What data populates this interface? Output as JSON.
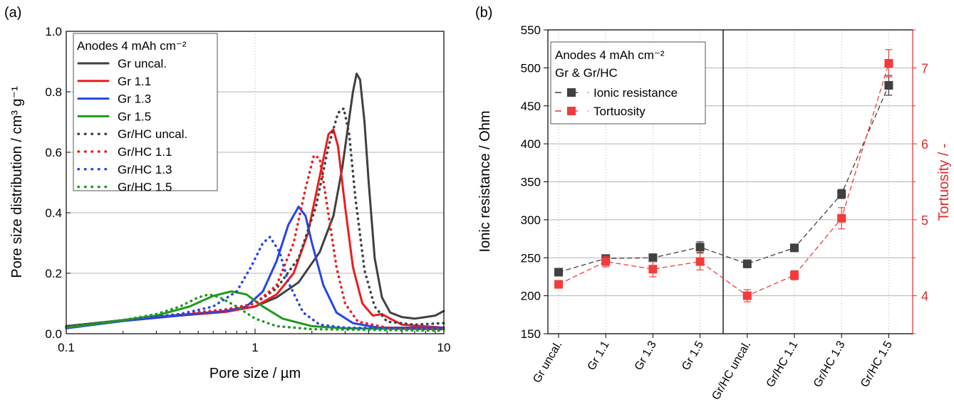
{
  "chart_data": [
    {
      "panel_label": "(a)",
      "type": "line",
      "xscale": "log",
      "xlim": [
        0.1,
        10
      ],
      "ylim": [
        0.0,
        1.0
      ],
      "xticks": [
        0.1,
        1,
        10
      ],
      "xtick_labels": [
        "0.1",
        "1",
        "10"
      ],
      "yticks": [
        0.0,
        0.2,
        0.4,
        0.6,
        0.8,
        1.0
      ],
      "ytick_labels": [
        "0.0",
        "0.2",
        "0.4",
        "0.6",
        "0.8",
        "1.0"
      ],
      "xlabel": "Pore size / µm",
      "ylabel": "Pore size distribution / cm³ g⁻¹",
      "grid": "horizontal",
      "legend_title": "Anodes 4 mAh cm⁻²",
      "legend_position": "top-left",
      "series": [
        {
          "name": "Gr uncal.",
          "color": "#404040",
          "style": "solid",
          "points": [
            [
              0.1,
              0.025
            ],
            [
              0.2,
              0.045
            ],
            [
              0.4,
              0.062
            ],
            [
              0.7,
              0.075
            ],
            [
              1.0,
              0.09
            ],
            [
              1.3,
              0.12
            ],
            [
              1.7,
              0.17
            ],
            [
              2.2,
              0.27
            ],
            [
              2.6,
              0.39
            ],
            [
              2.9,
              0.55
            ],
            [
              3.1,
              0.68
            ],
            [
              3.3,
              0.8
            ],
            [
              3.45,
              0.86
            ],
            [
              3.6,
              0.84
            ],
            [
              3.8,
              0.7
            ],
            [
              4.0,
              0.5
            ],
            [
              4.3,
              0.25
            ],
            [
              4.7,
              0.12
            ],
            [
              5.2,
              0.07
            ],
            [
              6.0,
              0.055
            ],
            [
              7.0,
              0.05
            ],
            [
              8.0,
              0.055
            ],
            [
              9.0,
              0.06
            ],
            [
              10.0,
              0.075
            ]
          ]
        },
        {
          "name": "Gr 1.1",
          "color": "#ee1c1c",
          "style": "solid",
          "points": [
            [
              0.1,
              0.02
            ],
            [
              0.2,
              0.043
            ],
            [
              0.4,
              0.06
            ],
            [
              0.7,
              0.072
            ],
            [
              1.0,
              0.09
            ],
            [
              1.3,
              0.13
            ],
            [
              1.6,
              0.2
            ],
            [
              1.9,
              0.33
            ],
            [
              2.2,
              0.52
            ],
            [
              2.45,
              0.66
            ],
            [
              2.6,
              0.675
            ],
            [
              2.75,
              0.62
            ],
            [
              3.0,
              0.42
            ],
            [
              3.3,
              0.22
            ],
            [
              3.7,
              0.1
            ],
            [
              4.2,
              0.06
            ],
            [
              4.7,
              0.065
            ],
            [
              5.2,
              0.05
            ],
            [
              6.0,
              0.03
            ],
            [
              10.0,
              0.02
            ]
          ]
        },
        {
          "name": "Gr 1.3",
          "color": "#2744e8",
          "style": "solid",
          "points": [
            [
              0.1,
              0.018
            ],
            [
              0.2,
              0.042
            ],
            [
              0.4,
              0.06
            ],
            [
              0.7,
              0.075
            ],
            [
              0.9,
              0.09
            ],
            [
              1.1,
              0.14
            ],
            [
              1.3,
              0.24
            ],
            [
              1.5,
              0.36
            ],
            [
              1.7,
              0.42
            ],
            [
              1.85,
              0.39
            ],
            [
              2.0,
              0.3
            ],
            [
              2.3,
              0.16
            ],
            [
              2.7,
              0.07
            ],
            [
              3.3,
              0.035
            ],
            [
              4.5,
              0.02
            ],
            [
              6.0,
              0.02
            ],
            [
              10.0,
              0.02
            ]
          ]
        },
        {
          "name": "Gr 1.5",
          "color": "#1f9a1f",
          "style": "solid",
          "points": [
            [
              0.1,
              0.02
            ],
            [
              0.2,
              0.045
            ],
            [
              0.3,
              0.06
            ],
            [
              0.45,
              0.09
            ],
            [
              0.6,
              0.125
            ],
            [
              0.75,
              0.14
            ],
            [
              0.9,
              0.13
            ],
            [
              1.1,
              0.09
            ],
            [
              1.4,
              0.05
            ],
            [
              2.0,
              0.025
            ],
            [
              3.0,
              0.018
            ],
            [
              10.0,
              0.015
            ]
          ]
        },
        {
          "name": "Gr/HC uncal.",
          "color": "#404040",
          "style": "dotted",
          "points": [
            [
              0.1,
              0.022
            ],
            [
              0.2,
              0.045
            ],
            [
              0.4,
              0.065
            ],
            [
              0.7,
              0.08
            ],
            [
              1.0,
              0.1
            ],
            [
              1.3,
              0.15
            ],
            [
              1.7,
              0.25
            ],
            [
              2.1,
              0.42
            ],
            [
              2.45,
              0.62
            ],
            [
              2.75,
              0.73
            ],
            [
              2.95,
              0.745
            ],
            [
              3.15,
              0.66
            ],
            [
              3.4,
              0.45
            ],
            [
              3.8,
              0.21
            ],
            [
              4.3,
              0.09
            ],
            [
              5.0,
              0.04
            ],
            [
              7.0,
              0.03
            ],
            [
              10.0,
              0.035
            ]
          ]
        },
        {
          "name": "Gr/HC 1.1",
          "color": "#ee1c1c",
          "style": "dotted",
          "points": [
            [
              0.1,
              0.022
            ],
            [
              0.2,
              0.045
            ],
            [
              0.4,
              0.065
            ],
            [
              0.7,
              0.08
            ],
            [
              1.0,
              0.1
            ],
            [
              1.3,
              0.16
            ],
            [
              1.6,
              0.3
            ],
            [
              1.85,
              0.48
            ],
            [
              2.05,
              0.59
            ],
            [
              2.2,
              0.58
            ],
            [
              2.4,
              0.43
            ],
            [
              2.7,
              0.22
            ],
            [
              3.0,
              0.1
            ],
            [
              3.5,
              0.04
            ],
            [
              5.0,
              0.02
            ],
            [
              10.0,
              0.015
            ]
          ]
        },
        {
          "name": "Gr/HC 1.3",
          "color": "#2744e8",
          "style": "dotted",
          "points": [
            [
              0.1,
              0.022
            ],
            [
              0.2,
              0.045
            ],
            [
              0.4,
              0.065
            ],
            [
              0.6,
              0.09
            ],
            [
              0.8,
              0.14
            ],
            [
              0.95,
              0.22
            ],
            [
              1.1,
              0.3
            ],
            [
              1.2,
              0.32
            ],
            [
              1.35,
              0.27
            ],
            [
              1.5,
              0.17
            ],
            [
              1.8,
              0.07
            ],
            [
              2.2,
              0.03
            ],
            [
              3.0,
              0.02
            ],
            [
              10.0,
              0.015
            ]
          ]
        },
        {
          "name": "Gr/HC 1.5",
          "color": "#1f9a1f",
          "style": "dotted",
          "points": [
            [
              0.1,
              0.022
            ],
            [
              0.2,
              0.045
            ],
            [
              0.3,
              0.065
            ],
            [
              0.4,
              0.09
            ],
            [
              0.5,
              0.12
            ],
            [
              0.57,
              0.13
            ],
            [
              0.65,
              0.12
            ],
            [
              0.8,
              0.09
            ],
            [
              1.0,
              0.05
            ],
            [
              1.3,
              0.025
            ],
            [
              2.0,
              0.015
            ],
            [
              10.0,
              0.01
            ]
          ]
        }
      ]
    },
    {
      "panel_label": "(b)",
      "type": "scatter",
      "categories": [
        "Gr uncal.",
        "Gr 1.1",
        "Gr 1.3",
        "Gr 1.5",
        "Gr/HC uncal.",
        "Gr/HC 1.1",
        "Gr/HC 1.3",
        "Gr/HC 1.5"
      ],
      "ylabel": "Ionic resistance / Ohm",
      "ylim": [
        150,
        550
      ],
      "yticks": [
        150,
        200,
        250,
        300,
        350,
        400,
        450,
        500,
        550
      ],
      "ytick_labels": [
        "150",
        "200",
        "250",
        "300",
        "350",
        "400",
        "450",
        "500",
        "550"
      ],
      "y2label": "Tortuosity / -",
      "y2lim": [
        3.5,
        7.5
      ],
      "y2ticks": [
        4,
        5,
        6,
        7
      ],
      "y2tick_labels": [
        "4",
        "5",
        "6",
        "7"
      ],
      "grid": "horizontal",
      "legend_title": "Anodes 4 mAh cm⁻²",
      "legend_subtitle": "Gr & Gr/HC",
      "legend_position": "top-left",
      "series": [
        {
          "name": "Ionic resistance",
          "axis": "left",
          "color": "#404040",
          "values": [
            231,
            249,
            250,
            264,
            242,
            263,
            334,
            477
          ],
          "errors": [
            3,
            4,
            5,
            7,
            5,
            3,
            6,
            13
          ]
        },
        {
          "name": "Tortuosity",
          "axis": "right",
          "color": "#f23c3c",
          "values": [
            4.15,
            4.45,
            4.35,
            4.45,
            4.0,
            4.27,
            5.02,
            7.06
          ],
          "errors": [
            0.05,
            0.07,
            0.1,
            0.11,
            0.08,
            0.06,
            0.14,
            0.18
          ]
        }
      ]
    }
  ]
}
